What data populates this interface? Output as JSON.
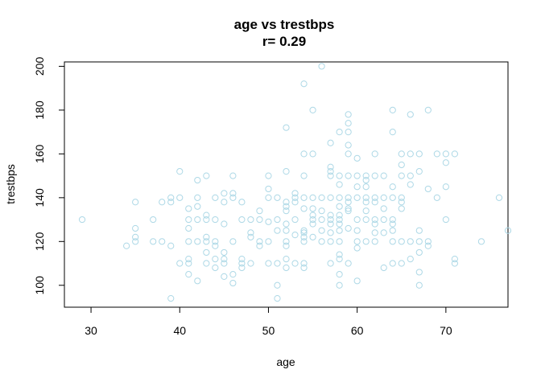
{
  "chart_data": {
    "type": "scatter",
    "title": "age vs trestbps",
    "subtitle": "r= 0.29",
    "xlabel": "age",
    "ylabel": "trestbps",
    "xlim": [
      27,
      77
    ],
    "ylim": [
      90,
      202
    ],
    "xticks": [
      30,
      40,
      50,
      60,
      70
    ],
    "yticks": [
      100,
      120,
      140,
      160,
      180,
      200
    ],
    "grid": false,
    "point_color": "#add8e6",
    "points": [
      [
        29,
        130
      ],
      [
        34,
        118
      ],
      [
        35,
        122
      ],
      [
        35,
        126
      ],
      [
        35,
        138
      ],
      [
        35,
        120
      ],
      [
        37,
        130
      ],
      [
        37,
        120
      ],
      [
        38,
        120
      ],
      [
        38,
        138
      ],
      [
        39,
        94
      ],
      [
        39,
        118
      ],
      [
        39,
        140
      ],
      [
        39,
        138
      ],
      [
        40,
        110
      ],
      [
        40,
        140
      ],
      [
        40,
        152
      ],
      [
        41,
        105
      ],
      [
        41,
        110
      ],
      [
        41,
        112
      ],
      [
        41,
        120
      ],
      [
        41,
        126
      ],
      [
        41,
        130
      ],
      [
        41,
        135
      ],
      [
        42,
        102
      ],
      [
        42,
        120
      ],
      [
        42,
        130
      ],
      [
        42,
        136
      ],
      [
        42,
        140
      ],
      [
        42,
        148
      ],
      [
        43,
        110
      ],
      [
        43,
        115
      ],
      [
        43,
        120
      ],
      [
        43,
        122
      ],
      [
        43,
        130
      ],
      [
        43,
        132
      ],
      [
        43,
        150
      ],
      [
        44,
        108
      ],
      [
        44,
        112
      ],
      [
        44,
        118
      ],
      [
        44,
        120
      ],
      [
        44,
        130
      ],
      [
        44,
        140
      ],
      [
        45,
        104
      ],
      [
        45,
        110
      ],
      [
        45,
        112
      ],
      [
        45,
        115
      ],
      [
        45,
        128
      ],
      [
        45,
        138
      ],
      [
        45,
        142
      ],
      [
        46,
        101
      ],
      [
        46,
        105
      ],
      [
        46,
        120
      ],
      [
        46,
        140
      ],
      [
        46,
        142
      ],
      [
        46,
        150
      ],
      [
        47,
        108
      ],
      [
        47,
        110
      ],
      [
        47,
        112
      ],
      [
        47,
        130
      ],
      [
        47,
        138
      ],
      [
        48,
        110
      ],
      [
        48,
        122
      ],
      [
        48,
        124
      ],
      [
        48,
        130
      ],
      [
        49,
        118
      ],
      [
        49,
        120
      ],
      [
        49,
        130
      ],
      [
        49,
        134
      ],
      [
        50,
        110
      ],
      [
        50,
        120
      ],
      [
        50,
        129
      ],
      [
        50,
        140
      ],
      [
        50,
        144
      ],
      [
        50,
        150
      ],
      [
        51,
        94
      ],
      [
        51,
        100
      ],
      [
        51,
        110
      ],
      [
        51,
        125
      ],
      [
        51,
        130
      ],
      [
        51,
        140
      ],
      [
        52,
        108
      ],
      [
        52,
        112
      ],
      [
        52,
        118
      ],
      [
        52,
        120
      ],
      [
        52,
        125
      ],
      [
        52,
        128
      ],
      [
        52,
        134
      ],
      [
        52,
        136
      ],
      [
        52,
        138
      ],
      [
        52,
        152
      ],
      [
        52,
        172
      ],
      [
        53,
        110
      ],
      [
        53,
        123
      ],
      [
        53,
        130
      ],
      [
        53,
        138
      ],
      [
        53,
        140
      ],
      [
        53,
        142
      ],
      [
        54,
        108
      ],
      [
        54,
        110
      ],
      [
        54,
        120
      ],
      [
        54,
        122
      ],
      [
        54,
        124
      ],
      [
        54,
        125
      ],
      [
        54,
        135
      ],
      [
        54,
        140
      ],
      [
        54,
        150
      ],
      [
        54,
        160
      ],
      [
        54,
        192
      ],
      [
        55,
        122
      ],
      [
        55,
        128
      ],
      [
        55,
        130
      ],
      [
        55,
        132
      ],
      [
        55,
        135
      ],
      [
        55,
        140
      ],
      [
        55,
        160
      ],
      [
        55,
        180
      ],
      [
        56,
        120
      ],
      [
        56,
        125
      ],
      [
        56,
        130
      ],
      [
        56,
        134
      ],
      [
        56,
        140
      ],
      [
        56,
        200
      ],
      [
        57,
        110
      ],
      [
        57,
        120
      ],
      [
        57,
        124
      ],
      [
        57,
        128
      ],
      [
        57,
        130
      ],
      [
        57,
        132
      ],
      [
        57,
        140
      ],
      [
        57,
        150
      ],
      [
        57,
        152
      ],
      [
        57,
        154
      ],
      [
        57,
        165
      ],
      [
        58,
        100
      ],
      [
        58,
        105
      ],
      [
        58,
        112
      ],
      [
        58,
        114
      ],
      [
        58,
        120
      ],
      [
        58,
        125
      ],
      [
        58,
        128
      ],
      [
        58,
        130
      ],
      [
        58,
        132
      ],
      [
        58,
        136
      ],
      [
        58,
        140
      ],
      [
        58,
        146
      ],
      [
        58,
        150
      ],
      [
        58,
        170
      ],
      [
        59,
        110
      ],
      [
        59,
        126
      ],
      [
        59,
        134
      ],
      [
        59,
        135
      ],
      [
        59,
        138
      ],
      [
        59,
        140
      ],
      [
        59,
        150
      ],
      [
        59,
        160
      ],
      [
        59,
        164
      ],
      [
        59,
        170
      ],
      [
        59,
        174
      ],
      [
        59,
        178
      ],
      [
        60,
        102
      ],
      [
        60,
        117
      ],
      [
        60,
        120
      ],
      [
        60,
        125
      ],
      [
        60,
        130
      ],
      [
        60,
        140
      ],
      [
        60,
        145
      ],
      [
        60,
        150
      ],
      [
        60,
        158
      ],
      [
        61,
        120
      ],
      [
        61,
        130
      ],
      [
        61,
        134
      ],
      [
        61,
        138
      ],
      [
        61,
        140
      ],
      [
        61,
        145
      ],
      [
        61,
        148
      ],
      [
        61,
        150
      ],
      [
        62,
        120
      ],
      [
        62,
        124
      ],
      [
        62,
        128
      ],
      [
        62,
        130
      ],
      [
        62,
        138
      ],
      [
        62,
        140
      ],
      [
        62,
        150
      ],
      [
        62,
        160
      ],
      [
        63,
        108
      ],
      [
        63,
        124
      ],
      [
        63,
        130
      ],
      [
        63,
        135
      ],
      [
        63,
        140
      ],
      [
        63,
        150
      ],
      [
        64,
        110
      ],
      [
        64,
        120
      ],
      [
        64,
        125
      ],
      [
        64,
        128
      ],
      [
        64,
        130
      ],
      [
        64,
        140
      ],
      [
        64,
        145
      ],
      [
        64,
        170
      ],
      [
        64,
        180
      ],
      [
        65,
        110
      ],
      [
        65,
        120
      ],
      [
        65,
        135
      ],
      [
        65,
        138
      ],
      [
        65,
        140
      ],
      [
        65,
        150
      ],
      [
        65,
        155
      ],
      [
        65,
        160
      ],
      [
        66,
        112
      ],
      [
        66,
        120
      ],
      [
        66,
        146
      ],
      [
        66,
        150
      ],
      [
        66,
        160
      ],
      [
        66,
        178
      ],
      [
        67,
        100
      ],
      [
        67,
        106
      ],
      [
        67,
        115
      ],
      [
        67,
        120
      ],
      [
        67,
        125
      ],
      [
        67,
        152
      ],
      [
        67,
        160
      ],
      [
        68,
        118
      ],
      [
        68,
        120
      ],
      [
        68,
        144
      ],
      [
        68,
        180
      ],
      [
        69,
        140
      ],
      [
        69,
        160
      ],
      [
        70,
        130
      ],
      [
        70,
        145
      ],
      [
        70,
        156
      ],
      [
        70,
        160
      ],
      [
        71,
        110
      ],
      [
        71,
        112
      ],
      [
        71,
        160
      ],
      [
        74,
        120
      ],
      [
        76,
        140
      ],
      [
        77,
        125
      ]
    ]
  }
}
